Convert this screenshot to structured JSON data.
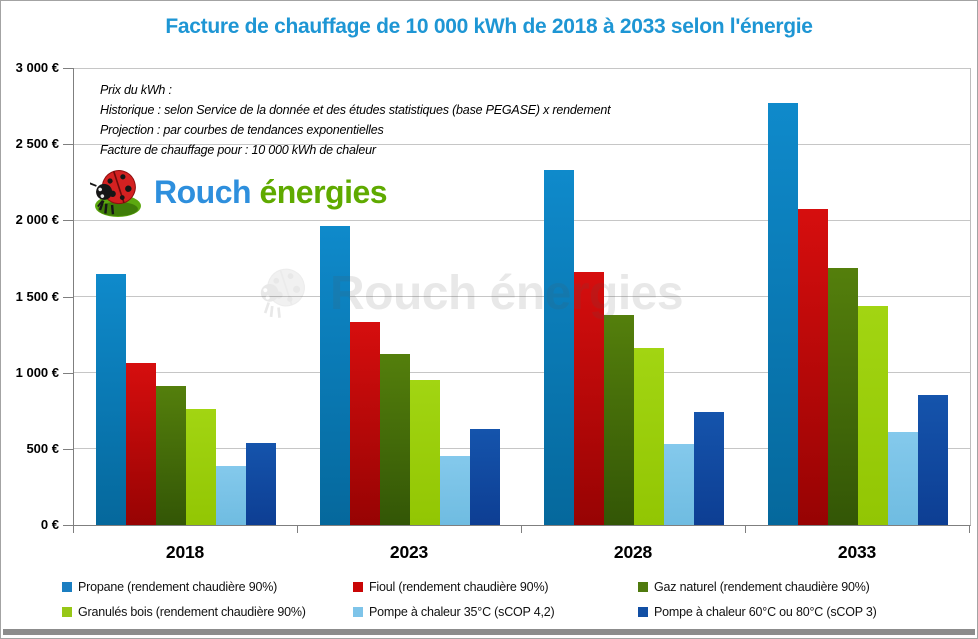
{
  "title": "Facture de chauffage de 10 000 kWh de 2018 à 2033 selon l'énergie",
  "title_color": "#1e96d4",
  "annotation": {
    "lines": [
      "Prix du kWh :",
      "Historique : selon Service de la donnée et des études statistiques (base PEGASE) x rendement",
      "Projection : par courbes de tendances exponentielles",
      "Facture de chauffage pour : 10 000 kWh de chaleur"
    ]
  },
  "logo": {
    "icon": "ladybug-icon",
    "brand_first": "Rouch",
    "brand_first_color": "#2e8fdd",
    "brand_second": "énergies",
    "brand_second_color": "#5faa00"
  },
  "watermark": {
    "text": "Rouch énergies"
  },
  "chart_data": {
    "type": "bar",
    "title": "Facture de chauffage de 10 000 kWh de 2018 à 2033 selon l'énergie",
    "xlabel": "",
    "ylabel": "",
    "categories": [
      "2018",
      "2023",
      "2028",
      "2033"
    ],
    "series": [
      {
        "name": "Propane (rendement chaudière 90%)",
        "legend_color": "#1b7ec1",
        "color_top": "#0f8acb",
        "color_bottom": "#05689c",
        "values": [
          1650,
          1960,
          2330,
          2770
        ]
      },
      {
        "name": "Fioul  (rendement chaudière 90%)",
        "legend_color": "#c90606",
        "color_top": "#d60e0e",
        "color_bottom": "#970303",
        "values": [
          1065,
          1330,
          1660,
          2075
        ]
      },
      {
        "name": "Gaz naturel (rendement chaudière 90%)",
        "legend_color": "#4f7a0e",
        "color_top": "#547f0c",
        "color_bottom": "#335606",
        "values": [
          915,
          1120,
          1380,
          1690
        ]
      },
      {
        "name": "Granulés bois (rendement chaudière 90%)",
        "legend_color": "#97c717",
        "color_top": "#a2d512",
        "color_bottom": "#92c603",
        "values": [
          760,
          950,
          1160,
          1440
        ]
      },
      {
        "name": "Pompe à chaleur 35°C (sCOP 4,2)",
        "legend_color": "#7ec4e9",
        "color_top": "#84c9ec",
        "color_bottom": "#6fbce1",
        "values": [
          385,
          455,
          530,
          610
        ]
      },
      {
        "name": "Pompe à chaleur 60°C ou 80°C (sCOP 3)",
        "legend_color": "#124fa4",
        "color_top": "#1554ac",
        "color_bottom": "#0d3e93",
        "values": [
          540,
          630,
          740,
          855
        ]
      }
    ],
    "ylim": [
      0,
      3000
    ],
    "ytick_step": 500,
    "ytick_labels": [
      "0 €",
      "500 €",
      "1 000 €",
      "1 500 €",
      "2 000 €",
      "2 500 €",
      "3 000 €"
    ],
    "grid": true,
    "legend_position": "bottom"
  }
}
